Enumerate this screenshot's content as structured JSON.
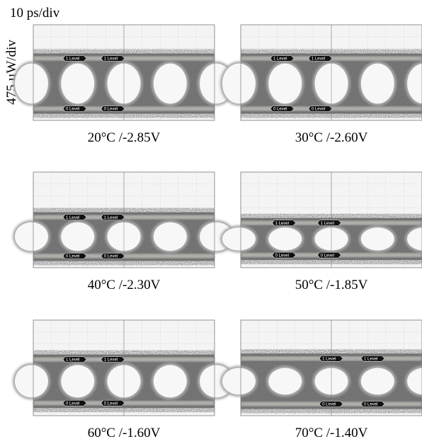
{
  "axis": {
    "time_scale": "10 ps/div",
    "power_scale": "475 µW/div"
  },
  "panels": [
    {
      "caption": "20°C /-2.85V",
      "one_level": "1 Level",
      "zero_level": "0 Level"
    },
    {
      "caption": "30°C /-2.60V",
      "one_level": "1 Level",
      "zero_level": "0 Level"
    },
    {
      "caption": "40°C /-2.30V",
      "one_level": "1 Level",
      "zero_level": "0 Level"
    },
    {
      "caption": "50°C /-1.85V",
      "one_level": "1 Level",
      "zero_level": "0 Level"
    },
    {
      "caption": "60°C /-1.60V",
      "one_level": "1 Level",
      "zero_level": "0 Level"
    },
    {
      "caption": "70°C /-1.40V",
      "one_level": "1 Level",
      "zero_level": "0 Level"
    }
  ]
}
